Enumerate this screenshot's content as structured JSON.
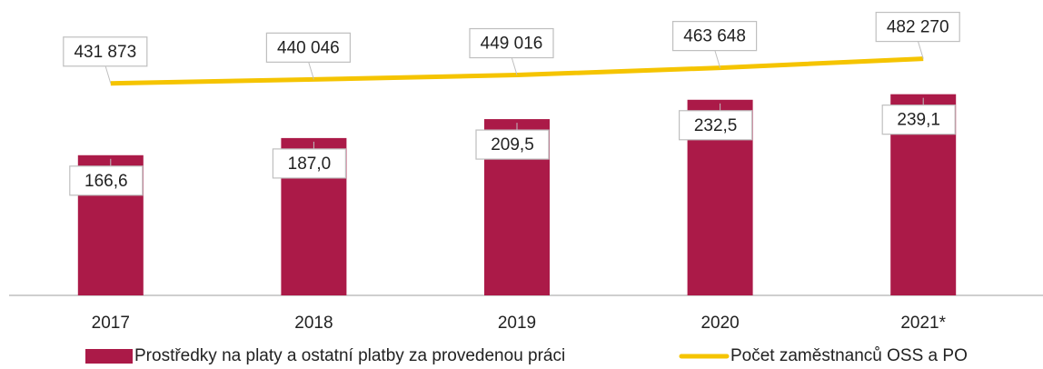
{
  "chart_data": {
    "type": "bar",
    "categories": [
      "2017",
      "2018",
      "2019",
      "2020",
      "2021*"
    ],
    "ylim": [
      0,
      350
    ],
    "y2lim": [
      0,
      600000
    ],
    "series": [
      {
        "name": "Prostředky na platy a ostatní platby za provedenou práci",
        "type": "bar",
        "color": "#ab1a48",
        "values": [
          166.6,
          187.0,
          209.5,
          232.5,
          239.1
        ],
        "value_labels": [
          "166,6",
          "187,0",
          "209,5",
          "232,5",
          "239,1"
        ]
      },
      {
        "name": "Počet zaměstnanců OSS a PO",
        "type": "line",
        "axis": "y2",
        "color": "#f5c400",
        "values": [
          431873,
          440046,
          449016,
          463648,
          482270
        ],
        "value_labels": [
          "431 873",
          "440 046",
          "449 016",
          "463 648",
          "482 270"
        ]
      }
    ],
    "legend": "bottom"
  }
}
